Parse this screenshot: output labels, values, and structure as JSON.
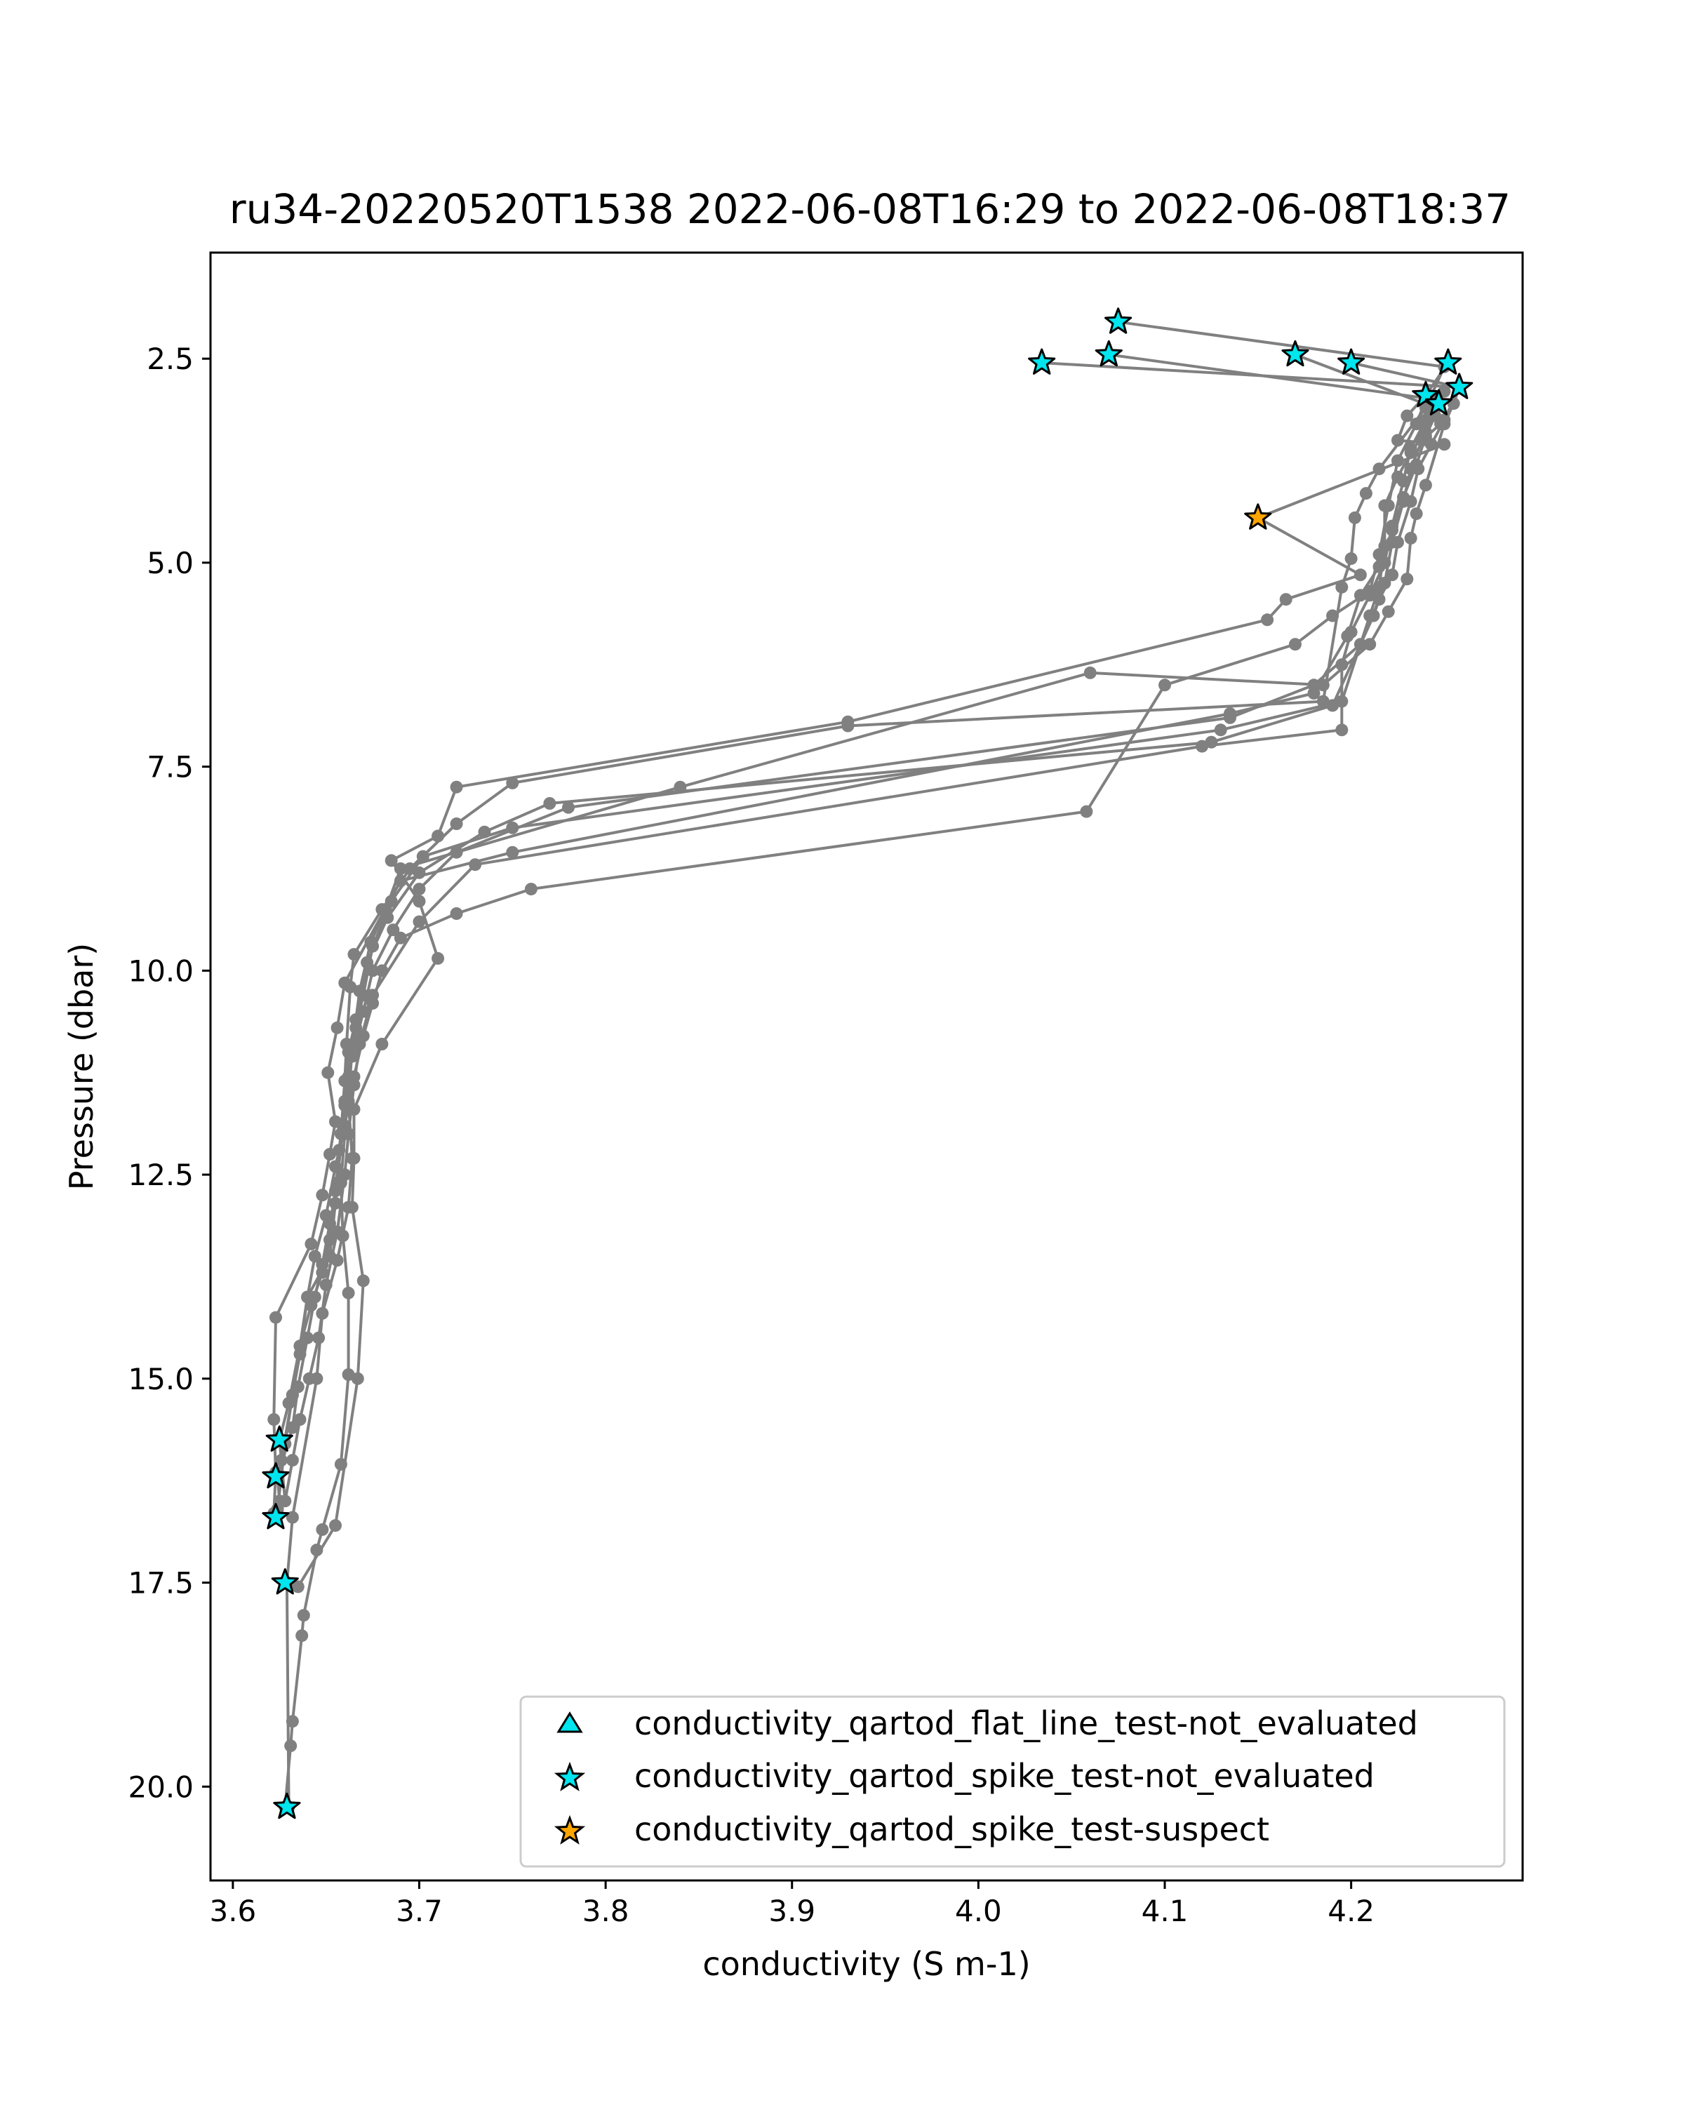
{
  "chart_data": {
    "type": "line",
    "title": "ru34-20220520T1538 2022-06-08T16:29 to 2022-06-08T18:37",
    "xlabel": "conductivity (S m-1)",
    "ylabel": "Pressure (dbar)",
    "xlim": [
      3.588,
      4.292
    ],
    "ylim": [
      21.15,
      1.2
    ],
    "y_inverted": true,
    "xticks": [
      "3.6",
      "3.7",
      "3.8",
      "3.9",
      "4.0",
      "4.1",
      "4.2"
    ],
    "yticks": [
      "2.5",
      "5.0",
      "7.5",
      "10.0",
      "12.5",
      "15.0",
      "17.5",
      "20.0"
    ],
    "grid": false,
    "legend_position": "lower-right",
    "colors": {
      "line": "#808080",
      "not_evaluated": "#00e5ee",
      "suspect": "#ffa500",
      "marker_edge": "#000000"
    },
    "legend": [
      {
        "label": "conductivity_qartod_flat_line_test-not_evaluated",
        "marker": "triangle",
        "color": "#00e5ee"
      },
      {
        "label": "conductivity_qartod_spike_test-not_evaluated",
        "marker": "star",
        "color": "#00e5ee"
      },
      {
        "label": "conductivity_qartod_spike_test-suspect",
        "marker": "star",
        "color": "#ffa500"
      }
    ],
    "profiles": [
      [
        [
          4.075,
          2.05
        ],
        [
          4.25,
          2.6
        ],
        [
          4.24,
          3.1
        ],
        [
          4.215,
          3.85
        ],
        [
          4.208,
          4.15
        ],
        [
          4.202,
          4.45
        ],
        [
          4.2,
          4.95
        ],
        [
          4.195,
          5.3
        ],
        [
          4.185,
          6.7
        ],
        [
          3.93,
          7.0
        ],
        [
          3.75,
          7.7
        ],
        [
          3.72,
          8.2
        ],
        [
          3.695,
          8.75
        ],
        [
          3.68,
          9.25
        ],
        [
          3.665,
          9.8
        ],
        [
          3.663,
          10.2
        ],
        [
          3.661,
          10.9
        ],
        [
          3.66,
          11.35
        ],
        [
          3.658,
          12.0
        ],
        [
          3.655,
          12.7
        ],
        [
          3.652,
          13.3
        ],
        [
          3.648,
          13.7
        ],
        [
          3.642,
          14.1
        ],
        [
          3.636,
          14.6
        ],
        [
          3.63,
          15.3
        ],
        [
          3.625,
          15.75
        ]
      ],
      [
        [
          4.034,
          2.55
        ],
        [
          4.258,
          2.85
        ],
        [
          4.255,
          3.05
        ],
        [
          4.25,
          3.3
        ],
        [
          4.24,
          4.05
        ],
        [
          4.235,
          4.4
        ],
        [
          4.232,
          4.7
        ],
        [
          4.23,
          5.2
        ],
        [
          4.22,
          5.6
        ],
        [
          4.21,
          6.0
        ],
        [
          4.185,
          6.5
        ],
        [
          4.06,
          6.35
        ],
        [
          3.84,
          7.75
        ],
        [
          3.69,
          8.75
        ],
        [
          3.682,
          9.25
        ],
        [
          3.674,
          9.65
        ],
        [
          3.668,
          10.25
        ],
        [
          3.664,
          10.95
        ],
        [
          3.662,
          11.6
        ],
        [
          3.664,
          12.3
        ],
        [
          3.662,
          12.9
        ],
        [
          3.656,
          13.55
        ],
        [
          3.648,
          14.2
        ],
        [
          3.645,
          15.0
        ],
        [
          3.632,
          16.7
        ],
        [
          3.629,
          17.5
        ],
        [
          3.63,
          20.25
        ]
      ],
      [
        [
          4.07,
          2.45
        ],
        [
          4.245,
          3.0
        ],
        [
          4.24,
          3.4
        ],
        [
          4.232,
          3.65
        ],
        [
          4.225,
          3.95
        ],
        [
          4.218,
          4.3
        ],
        [
          4.218,
          4.8
        ],
        [
          4.215,
          5.3
        ],
        [
          4.21,
          5.65
        ],
        [
          4.195,
          6.7
        ],
        [
          4.13,
          7.05
        ],
        [
          3.75,
          8.25
        ],
        [
          3.702,
          8.6
        ],
        [
          3.685,
          9.15
        ],
        [
          3.675,
          9.7
        ],
        [
          3.67,
          10.3
        ],
        [
          3.666,
          10.7
        ],
        [
          3.662,
          11.3
        ],
        [
          3.659,
          11.9
        ],
        [
          3.656,
          12.6
        ],
        [
          3.652,
          13.1
        ],
        [
          3.648,
          13.6
        ],
        [
          3.644,
          14.0
        ],
        [
          3.64,
          14.5
        ],
        [
          3.635,
          15.1
        ],
        [
          3.632,
          15.6
        ],
        [
          3.624,
          16.2
        ],
        [
          3.625,
          16.5
        ],
        [
          3.623,
          16.7
        ]
      ],
      [
        [
          4.17,
          2.45
        ],
        [
          4.245,
          3.1
        ],
        [
          4.248,
          3.3
        ],
        [
          4.238,
          3.5
        ],
        [
          4.232,
          3.85
        ],
        [
          4.228,
          4.25
        ],
        [
          4.222,
          4.75
        ],
        [
          4.218,
          5.25
        ],
        [
          4.212,
          5.65
        ],
        [
          4.19,
          6.75
        ],
        [
          4.125,
          7.2
        ],
        [
          3.77,
          7.95
        ],
        [
          3.735,
          8.3
        ],
        [
          3.7,
          8.8
        ],
        [
          3.683,
          9.35
        ],
        [
          3.672,
          9.9
        ],
        [
          3.666,
          10.6
        ],
        [
          3.662,
          11.0
        ],
        [
          3.66,
          11.65
        ],
        [
          3.66,
          12.0
        ],
        [
          3.658,
          12.6
        ],
        [
          3.659,
          13.25
        ],
        [
          3.662,
          13.95
        ],
        [
          3.662,
          14.95
        ],
        [
          3.658,
          16.05
        ],
        [
          3.648,
          16.85
        ],
        [
          3.645,
          17.1
        ],
        [
          3.638,
          17.9
        ],
        [
          3.637,
          18.15
        ],
        [
          3.632,
          19.2
        ],
        [
          3.631,
          19.5
        ],
        [
          3.628,
          20.25
        ]
      ],
      [
        [
          4.2,
          2.55
        ],
        [
          4.258,
          2.85
        ],
        [
          4.25,
          3.25
        ],
        [
          4.243,
          3.55
        ],
        [
          4.236,
          3.85
        ],
        [
          4.232,
          4.25
        ],
        [
          4.225,
          4.75
        ],
        [
          4.222,
          5.15
        ],
        [
          4.215,
          5.45
        ],
        [
          4.205,
          6.0
        ],
        [
          4.18,
          6.5
        ],
        [
          4.135,
          6.9
        ],
        [
          3.78,
          8.0
        ],
        [
          3.72,
          8.55
        ],
        [
          3.7,
          9.0
        ],
        [
          3.686,
          9.5
        ],
        [
          3.675,
          10.0
        ],
        [
          3.67,
          10.5
        ],
        [
          3.664,
          11.05
        ],
        [
          3.66,
          11.6
        ],
        [
          3.657,
          12.2
        ],
        [
          3.655,
          12.85
        ],
        [
          3.652,
          13.5
        ],
        [
          3.64,
          14.0
        ],
        [
          3.636,
          14.7
        ],
        [
          3.632,
          15.2
        ],
        [
          3.626,
          16.0
        ],
        [
          3.624,
          16.2
        ]
      ],
      [
        [
          4.252,
          2.55
        ],
        [
          4.24,
          2.95
        ],
        [
          4.23,
          3.2
        ],
        [
          4.225,
          3.5
        ],
        [
          4.25,
          3.55
        ],
        [
          4.15,
          4.45
        ],
        [
          4.205,
          5.15
        ],
        [
          4.165,
          5.45
        ],
        [
          4.155,
          5.7
        ],
        [
          3.93,
          6.95
        ],
        [
          3.72,
          7.75
        ],
        [
          3.71,
          8.35
        ],
        [
          3.685,
          8.65
        ],
        [
          3.7,
          9.15
        ],
        [
          3.71,
          9.85
        ],
        [
          3.68,
          10.9
        ],
        [
          3.665,
          11.7
        ],
        [
          3.665,
          12.3
        ],
        [
          3.664,
          12.9
        ],
        [
          3.67,
          13.8
        ],
        [
          3.667,
          15.0
        ],
        [
          3.655,
          16.8
        ],
        [
          3.635,
          17.55
        ],
        [
          3.628,
          17.5
        ]
      ],
      [
        [
          4.245,
          3.05
        ],
        [
          4.24,
          3.25
        ],
        [
          4.232,
          3.6
        ],
        [
          4.228,
          4.0
        ],
        [
          4.222,
          4.55
        ],
        [
          4.218,
          5.0
        ],
        [
          4.21,
          5.4
        ],
        [
          4.2,
          5.85
        ],
        [
          4.195,
          6.25
        ],
        [
          4.195,
          7.05
        ],
        [
          4.12,
          7.25
        ],
        [
          3.73,
          8.7
        ],
        [
          3.7,
          9.4
        ],
        [
          3.675,
          10.3
        ],
        [
          3.668,
          10.9
        ],
        [
          3.665,
          11.4
        ],
        [
          3.662,
          12.0
        ],
        [
          3.66,
          12.5
        ],
        [
          3.656,
          13.2
        ],
        [
          3.65,
          13.85
        ],
        [
          3.646,
          14.5
        ],
        [
          3.641,
          15.0
        ],
        [
          3.636,
          15.5
        ],
        [
          3.632,
          16.0
        ],
        [
          3.628,
          16.5
        ],
        [
          3.625,
          15.75
        ]
      ],
      [
        [
          4.24,
          3.0
        ],
        [
          4.235,
          3.3
        ],
        [
          4.225,
          3.75
        ],
        [
          4.22,
          4.3
        ],
        [
          4.215,
          4.9
        ],
        [
          4.21,
          5.35
        ],
        [
          4.19,
          5.65
        ],
        [
          4.17,
          6.0
        ],
        [
          4.1,
          6.5
        ],
        [
          4.058,
          8.05
        ],
        [
          3.76,
          9.0
        ],
        [
          3.72,
          9.3
        ],
        [
          3.69,
          9.6
        ],
        [
          3.68,
          10.0
        ],
        [
          3.675,
          10.4
        ],
        [
          3.67,
          10.8
        ],
        [
          3.665,
          11.3
        ],
        [
          3.66,
          11.9
        ],
        [
          3.655,
          12.4
        ],
        [
          3.65,
          13.0
        ],
        [
          3.644,
          13.5
        ],
        [
          3.64,
          14.0
        ],
        [
          3.636,
          14.6
        ],
        [
          3.632,
          15.2
        ],
        [
          3.628,
          15.8
        ],
        [
          3.624,
          16.6
        ]
      ],
      [
        [
          4.25,
          2.9
        ],
        [
          4.245,
          3.2
        ],
        [
          4.24,
          3.45
        ],
        [
          4.235,
          3.8
        ],
        [
          4.228,
          4.2
        ],
        [
          4.222,
          4.6
        ],
        [
          4.215,
          5.05
        ],
        [
          4.205,
          5.4
        ],
        [
          4.198,
          5.9
        ],
        [
          4.18,
          6.6
        ],
        [
          4.135,
          6.85
        ],
        [
          3.75,
          8.55
        ],
        [
          3.69,
          8.9
        ],
        [
          3.66,
          10.15
        ],
        [
          3.656,
          10.7
        ],
        [
          3.651,
          11.25
        ],
        [
          3.655,
          11.85
        ],
        [
          3.652,
          12.25
        ],
        [
          3.648,
          12.75
        ],
        [
          3.642,
          13.35
        ],
        [
          3.623,
          14.25
        ],
        [
          3.622,
          15.5
        ],
        [
          3.623,
          16.15
        ],
        [
          3.622,
          16.65
        ]
      ]
    ],
    "markers": [
      {
        "x": 4.075,
        "y": 2.05,
        "flag": "not_evaluated"
      },
      {
        "x": 4.07,
        "y": 2.45,
        "flag": "not_evaluated"
      },
      {
        "x": 4.034,
        "y": 2.55,
        "flag": "not_evaluated"
      },
      {
        "x": 4.17,
        "y": 2.45,
        "flag": "not_evaluated"
      },
      {
        "x": 4.2,
        "y": 2.55,
        "flag": "not_evaluated"
      },
      {
        "x": 4.252,
        "y": 2.55,
        "flag": "not_evaluated"
      },
      {
        "x": 4.258,
        "y": 2.85,
        "flag": "not_evaluated"
      },
      {
        "x": 4.24,
        "y": 2.95,
        "flag": "not_evaluated"
      },
      {
        "x": 4.247,
        "y": 3.05,
        "flag": "not_evaluated"
      },
      {
        "x": 4.15,
        "y": 4.45,
        "flag": "suspect"
      },
      {
        "x": 3.625,
        "y": 15.75,
        "flag": "not_evaluated"
      },
      {
        "x": 3.623,
        "y": 16.2,
        "flag": "not_evaluated"
      },
      {
        "x": 3.623,
        "y": 16.7,
        "flag": "not_evaluated"
      },
      {
        "x": 3.628,
        "y": 17.5,
        "flag": "not_evaluated"
      },
      {
        "x": 3.629,
        "y": 20.25,
        "flag": "not_evaluated"
      }
    ]
  }
}
